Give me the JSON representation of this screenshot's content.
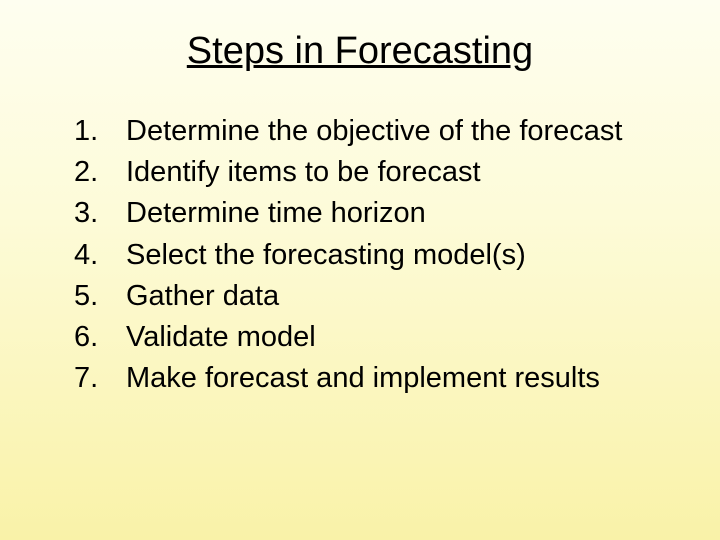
{
  "title": "Steps in Forecasting",
  "items": [
    {
      "num": "1.",
      "text": "Determine the objective of the forecast"
    },
    {
      "num": "2.",
      "text": "Identify items to be forecast"
    },
    {
      "num": "3.",
      "text": "Determine time horizon"
    },
    {
      "num": "4.",
      "text": "Select the forecasting model(s)"
    },
    {
      "num": "5.",
      "text": "Gather data"
    },
    {
      "num": "6.",
      "text": "Validate model"
    },
    {
      "num": "7.",
      "text": "Make forecast and implement results"
    }
  ],
  "colors": {
    "text": "#000000",
    "bg_top": "#fefef0",
    "bg_bottom": "#f9f2a8"
  },
  "typography": {
    "title_fontsize": 38,
    "body_fontsize": 29,
    "family": "Arial"
  }
}
